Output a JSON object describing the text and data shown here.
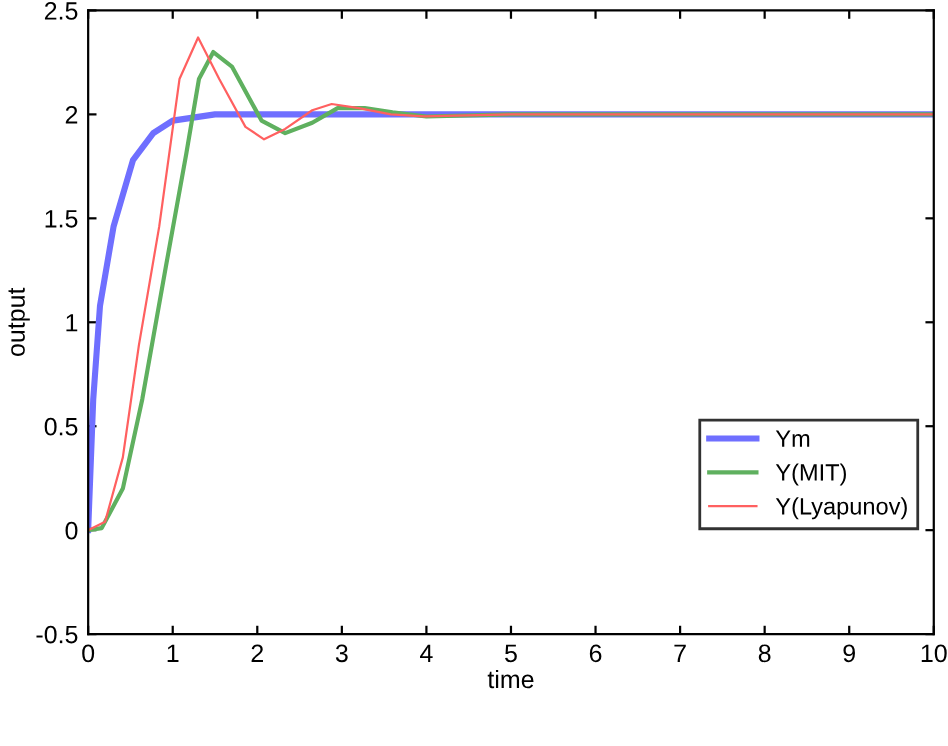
{
  "chart_data": {
    "type": "line",
    "xlabel": "time",
    "ylabel": "output",
    "xlim": [
      0,
      10
    ],
    "ylim": [
      -0.5,
      2.5
    ],
    "xticks": [
      0,
      1,
      2,
      3,
      4,
      5,
      6,
      7,
      8,
      9,
      10
    ],
    "yticks": [
      -0.5,
      0,
      0.5,
      1,
      1.5,
      2,
      2.5
    ],
    "grid": false,
    "legend": "bottom right",
    "marker": "none",
    "line_style": "solid",
    "series": [
      {
        "name": "Ym",
        "color": "#6f6fff",
        "x": [
          0,
          0.06,
          0.14,
          0.3,
          0.53,
          0.77,
          1,
          1.5,
          2,
          3,
          4,
          5,
          6,
          7,
          8,
          9,
          10
        ],
        "values": [
          0,
          0.63,
          1.08,
          1.46,
          1.78,
          1.91,
          1.97,
          2.0,
          2.0,
          2.0,
          2.0,
          2.0,
          2.0,
          2.0,
          2.0,
          2.0,
          2.0
        ]
      },
      {
        "name": "Y(MIT)",
        "color": "#5fb05f",
        "x": [
          0,
          0.16,
          0.41,
          0.64,
          0.92,
          1.16,
          1.31,
          1.48,
          1.7,
          2.05,
          2.33,
          2.65,
          2.95,
          3.27,
          3.6,
          4,
          5,
          6,
          7,
          8,
          9,
          10
        ],
        "values": [
          0,
          0.01,
          0.2,
          0.63,
          1.27,
          1.81,
          2.17,
          2.3,
          2.23,
          1.97,
          1.91,
          1.96,
          2.03,
          2.03,
          2.01,
          1.99,
          2.0,
          2.0,
          2.0,
          2.0,
          2.0,
          2.0
        ]
      },
      {
        "name": "Y(Lyapunov)",
        "color": "#ff6060",
        "x": [
          0,
          0.2,
          0.41,
          0.6,
          0.84,
          1.08,
          1.3,
          1.55,
          1.86,
          2.08,
          2.33,
          2.65,
          2.88,
          3.2,
          3.58,
          3.97,
          5,
          6,
          7,
          8,
          9,
          10
        ],
        "values": [
          0,
          0.04,
          0.35,
          0.89,
          1.46,
          2.17,
          2.37,
          2.17,
          1.94,
          1.88,
          1.93,
          2.02,
          2.05,
          2.03,
          2.0,
          1.99,
          2.0,
          2.0,
          2.0,
          2.0,
          2.0,
          2.0
        ]
      }
    ]
  }
}
